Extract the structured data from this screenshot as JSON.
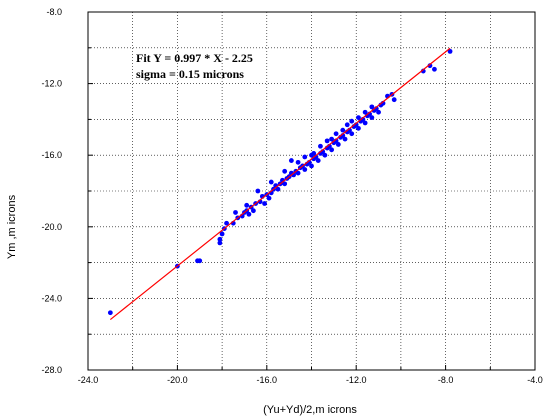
{
  "chart_data": {
    "type": "scatter",
    "title": "",
    "xlabel": "(Yu+Yd)/2,m icrons",
    "ylabel": "Ym ,m icrons",
    "xlim": [
      -24.0,
      -4.0
    ],
    "ylim": [
      -28.0,
      -8.0
    ],
    "x_ticks": [
      "-24.0",
      "-20.0",
      "-16.0",
      "-12.0",
      "-8.0",
      "-4.0"
    ],
    "y_ticks": [
      "-8.0",
      "-12.0",
      "-16.0",
      "-20.0",
      "-24.0",
      "-28.0"
    ],
    "grid": true,
    "grid_style": "dotted",
    "annotations": [
      "Fit Y = 0.997 * X - 2.25",
      "sigma = 0.15 microns"
    ],
    "fit_line": {
      "slope": 0.997,
      "intercept": -2.25,
      "x_range": [
        -23.0,
        -7.8
      ],
      "color": "#ff0000"
    },
    "points_color": "#0000ff",
    "points": [
      [
        -23.0,
        -24.8
      ],
      [
        -20.0,
        -22.2
      ],
      [
        -19.0,
        -21.9
      ],
      [
        -19.1,
        -21.9
      ],
      [
        -18.1,
        -20.9
      ],
      [
        -18.1,
        -20.7
      ],
      [
        -18.0,
        -20.4
      ],
      [
        -17.9,
        -20.1
      ],
      [
        -17.8,
        -19.8
      ],
      [
        -17.5,
        -19.8
      ],
      [
        -17.3,
        -19.5
      ],
      [
        -17.1,
        -19.4
      ],
      [
        -17.0,
        -19.2
      ],
      [
        -16.9,
        -19.1
      ],
      [
        -16.8,
        -19.3
      ],
      [
        -16.7,
        -18.9
      ],
      [
        -16.6,
        -19.1
      ],
      [
        -16.5,
        -18.7
      ],
      [
        -16.3,
        -18.6
      ],
      [
        -16.2,
        -18.3
      ],
      [
        -16.1,
        -18.7
      ],
      [
        -16.0,
        -18.2
      ],
      [
        -15.9,
        -18.4
      ],
      [
        -15.8,
        -18.1
      ],
      [
        -15.7,
        -17.9
      ],
      [
        -15.6,
        -17.7
      ],
      [
        -15.5,
        -17.9
      ],
      [
        -15.4,
        -17.6
      ],
      [
        -15.3,
        -17.4
      ],
      [
        -15.2,
        -17.6
      ],
      [
        -15.1,
        -17.3
      ],
      [
        -15.0,
        -17.2
      ],
      [
        -14.9,
        -17.0
      ],
      [
        -14.8,
        -17.1
      ],
      [
        -14.7,
        -16.9
      ],
      [
        -14.6,
        -17.0
      ],
      [
        -14.5,
        -16.7
      ],
      [
        -14.4,
        -16.6
      ],
      [
        -14.3,
        -16.8
      ],
      [
        -14.2,
        -16.5
      ],
      [
        -14.1,
        -16.4
      ],
      [
        -14.0,
        -16.6
      ],
      [
        -13.9,
        -16.2
      ],
      [
        -13.8,
        -16.1
      ],
      [
        -13.7,
        -16.3
      ],
      [
        -13.6,
        -15.9
      ],
      [
        -13.5,
        -15.8
      ],
      [
        -13.4,
        -16.0
      ],
      [
        -13.3,
        -15.6
      ],
      [
        -13.2,
        -15.5
      ],
      [
        -13.1,
        -15.7
      ],
      [
        -13.0,
        -15.3
      ],
      [
        -12.9,
        -15.2
      ],
      [
        -12.8,
        -15.4
      ],
      [
        -12.7,
        -15.0
      ],
      [
        -12.6,
        -14.9
      ],
      [
        -12.5,
        -15.1
      ],
      [
        -12.4,
        -14.7
      ],
      [
        -12.3,
        -14.6
      ],
      [
        -12.2,
        -14.8
      ],
      [
        -12.1,
        -14.4
      ],
      [
        -12.0,
        -14.3
      ],
      [
        -11.9,
        -14.5
      ],
      [
        -11.8,
        -14.1
      ],
      [
        -11.7,
        -14.0
      ],
      [
        -11.6,
        -14.2
      ],
      [
        -11.5,
        -13.8
      ],
      [
        -11.4,
        -13.7
      ],
      [
        -11.3,
        -13.9
      ],
      [
        -11.2,
        -13.5
      ],
      [
        -11.1,
        -13.4
      ],
      [
        -11.0,
        -13.6
      ],
      [
        -10.9,
        -13.2
      ],
      [
        -10.8,
        -13.1
      ],
      [
        -10.6,
        -12.7
      ],
      [
        -10.4,
        -12.6
      ],
      [
        -10.3,
        -12.9
      ],
      [
        -15.2,
        -16.9
      ],
      [
        -14.9,
        -16.3
      ],
      [
        -14.3,
        -16.1
      ],
      [
        -13.9,
        -15.9
      ],
      [
        -13.6,
        -15.5
      ],
      [
        -13.3,
        -15.2
      ],
      [
        -12.9,
        -14.8
      ],
      [
        -12.6,
        -14.6
      ],
      [
        -12.2,
        -14.1
      ],
      [
        -11.9,
        -13.9
      ],
      [
        -11.6,
        -13.6
      ],
      [
        -11.3,
        -13.3
      ],
      [
        -14.6,
        -16.4
      ],
      [
        -14.0,
        -16.0
      ],
      [
        -13.1,
        -15.1
      ],
      [
        -12.4,
        -14.3
      ],
      [
        -15.8,
        -17.5
      ],
      [
        -16.4,
        -18.0
      ],
      [
        -16.9,
        -18.8
      ],
      [
        -17.4,
        -19.2
      ],
      [
        -9.0,
        -11.3
      ],
      [
        -8.7,
        -11.0
      ],
      [
        -8.5,
        -11.2
      ],
      [
        -7.8,
        -10.2
      ]
    ]
  }
}
